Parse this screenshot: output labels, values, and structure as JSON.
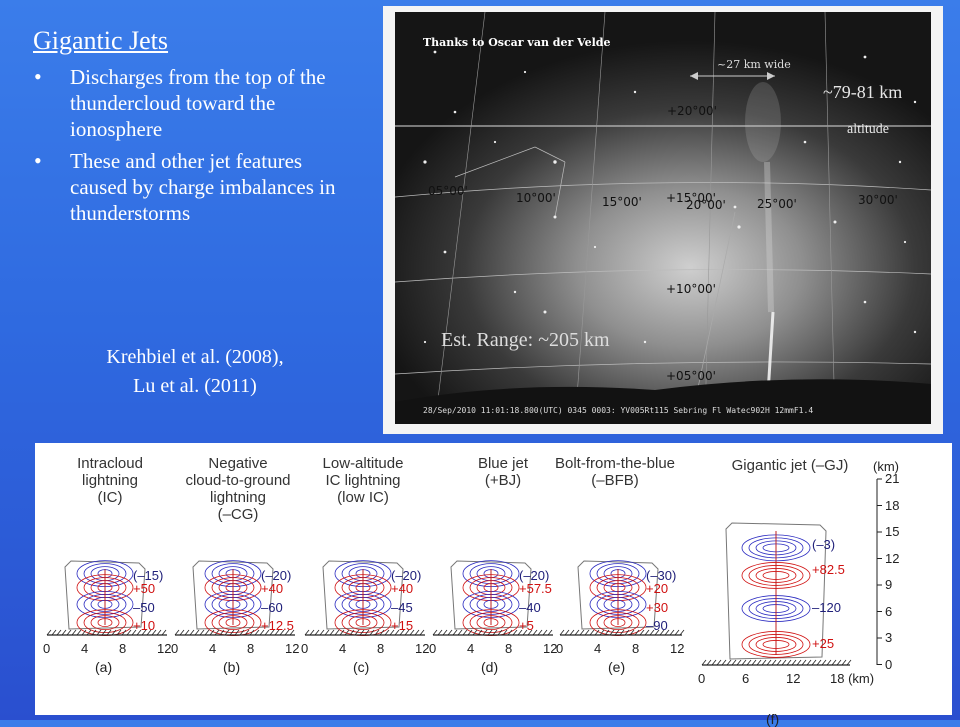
{
  "title": "Gigantic Jets",
  "bullets": [
    "Discharges from the top of the thundercloud toward the ionosphere",
    "These and other jet features caused by charge imbalances in thunderstorms"
  ],
  "citation": [
    "Krehbiel et al. (2008),",
    "Lu et al. (2011)"
  ],
  "photo": {
    "credit": "Thanks to Oscar van der Velde",
    "width_note": "~27 km wide",
    "altitude_value": "~79-81 km",
    "altitude_word": "altitude",
    "range": "Est. Range: ~205 km",
    "timestamp": "28/Sep/2010 11:01:18.800(UTC) 0345  0003: YV005Rt115 Sebring Fl  Watec902H 12mmF1.4",
    "coords": [
      "+20°00'",
      "05°00'",
      "10°00'",
      "15°00'",
      "+15°00'",
      "20°00'",
      "25°00'",
      "30°00'",
      "+10°00'",
      "+05°00'"
    ]
  },
  "diagram": {
    "headings": [
      [
        "Intracloud",
        "lightning",
        "(IC)"
      ],
      [
        "Negative",
        "cloud-to-ground",
        "lightning",
        "(–CG)"
      ],
      [
        "Low-altitude",
        "IC lightning",
        "(low IC)"
      ],
      [
        "Blue jet",
        "(+BJ)"
      ],
      [
        "Bolt-from-the-blue",
        "(–BFB)"
      ],
      [
        "Gigantic jet (–GJ)"
      ]
    ],
    "charges": [
      [
        "(–15)",
        "+50",
        "–50",
        "+10"
      ],
      [
        "(–20)",
        "+40",
        "–60",
        "+12.5"
      ],
      [
        "(–20)",
        "+40",
        "–45",
        "+15"
      ],
      [
        "(–20)",
        "+57.5",
        "–40",
        "+5"
      ],
      [
        "(–30)",
        "+20",
        "+30",
        "–90"
      ],
      [
        "(–3)",
        "+82.5",
        "–120",
        "+25"
      ]
    ],
    "x_ticks": [
      "0",
      "4",
      "8",
      "12"
    ],
    "x_ticks_f": [
      "0",
      "6",
      "12",
      "18 (km)"
    ],
    "y_unit": "(km)",
    "y_ticks": [
      "21",
      "18",
      "15",
      "12",
      "9",
      "6",
      "3",
      "0"
    ],
    "subfig": [
      "(a)",
      "(b)",
      "(c)",
      "(d)",
      "(e)",
      "(f)"
    ]
  }
}
